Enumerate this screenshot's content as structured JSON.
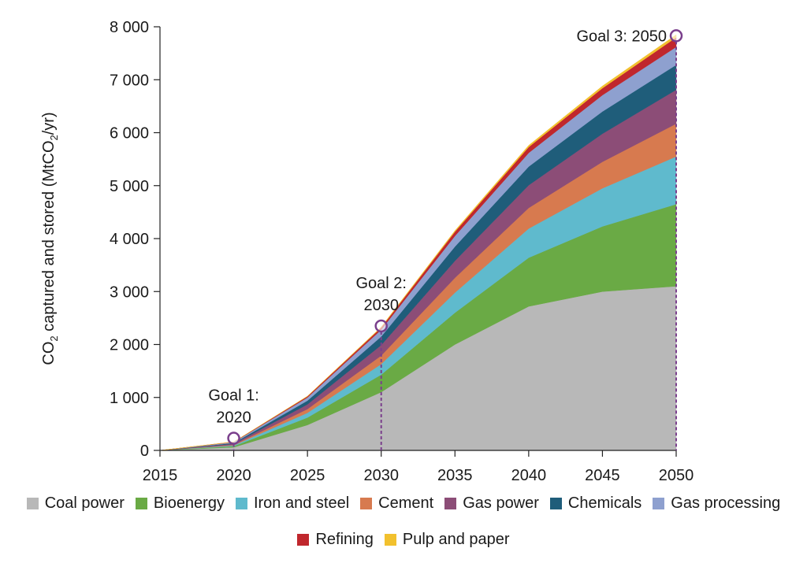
{
  "chart_data": {
    "type": "area",
    "stacked": true,
    "title": "",
    "xlabel": "",
    "ylabel": "CO2 captured and stored (MtCO2/yr)",
    "ylabel_parts": {
      "a": "CO",
      "sub1": "2",
      "b": " captured and stored (MtCO",
      "sub2": "2",
      "c": "/yr)"
    },
    "x": [
      2015,
      2020,
      2025,
      2030,
      2035,
      2040,
      2045,
      2050
    ],
    "xlim": [
      2015,
      2050
    ],
    "ylim": [
      0,
      8000
    ],
    "xticks": [
      "2015",
      "2020",
      "2025",
      "2030",
      "2035",
      "2040",
      "2045",
      "2050"
    ],
    "yticks": [
      {
        "value": 0,
        "label": "0"
      },
      {
        "value": 1000,
        "label": "1 000"
      },
      {
        "value": 2000,
        "label": "2 000"
      },
      {
        "value": 3000,
        "label": "3 000"
      },
      {
        "value": 4000,
        "label": "4 000"
      },
      {
        "value": 5000,
        "label": "5 000"
      },
      {
        "value": 6000,
        "label": "6 000"
      },
      {
        "value": 7000,
        "label": "7 000"
      },
      {
        "value": 8000,
        "label": "8 000"
      }
    ],
    "series": [
      {
        "name": "Coal power",
        "color": "#b8b8b8",
        "values": [
          0,
          60,
          480,
          1100,
          2000,
          2720,
          3000,
          3100
        ]
      },
      {
        "name": "Bioenergy",
        "color": "#6aaa45",
        "values": [
          0,
          20,
          140,
          330,
          600,
          920,
          1230,
          1550
        ]
      },
      {
        "name": "Iron and steel",
        "color": "#5fbacd",
        "values": [
          0,
          15,
          90,
          200,
          380,
          550,
          720,
          900
        ]
      },
      {
        "name": "Cement",
        "color": "#d77a4f",
        "values": [
          0,
          10,
          70,
          160,
          280,
          390,
          500,
          620
        ]
      },
      {
        "name": "Gas power",
        "color": "#8c4d77",
        "values": [
          0,
          20,
          90,
          200,
          320,
          430,
          530,
          640
        ]
      },
      {
        "name": "Chemicals",
        "color": "#1f5d7a",
        "values": [
          0,
          15,
          70,
          160,
          270,
          350,
          420,
          470
        ]
      },
      {
        "name": "Gas processing",
        "color": "#8ea0cf",
        "values": [
          0,
          15,
          60,
          130,
          200,
          260,
          310,
          340
        ]
      },
      {
        "name": "Refining",
        "color": "#c0272d",
        "values": [
          0,
          5,
          20,
          40,
          80,
          110,
          130,
          180
        ]
      },
      {
        "name": "Pulp and paper",
        "color": "#f2c12e",
        "values": [
          0,
          0,
          5,
          10,
          20,
          30,
          40,
          50
        ]
      }
    ],
    "legend_rows": [
      [
        "Coal power",
        "Bioenergy",
        "Iron and steel",
        "Cement",
        "Gas power",
        "Chemicals",
        "Gas processing"
      ],
      [
        "Refining",
        "Pulp and paper"
      ]
    ],
    "legend_position": "bottom",
    "annotations": [
      {
        "lines": [
          "Goal 1:",
          "2020"
        ],
        "x": 2020,
        "y": 230
      },
      {
        "lines": [
          "Goal 2:",
          "2030"
        ],
        "x": 2030,
        "y": 2350
      },
      {
        "lines": [
          "Goal 3: 2050"
        ],
        "x": 2050,
        "y": 7830
      }
    ],
    "marker_color": "#7a3f8c"
  }
}
